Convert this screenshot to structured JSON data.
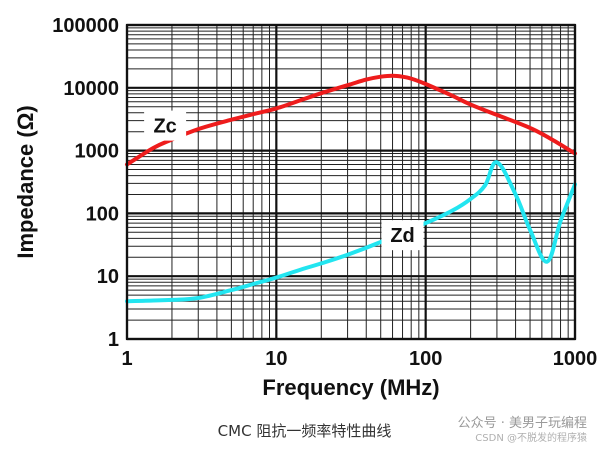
{
  "caption": "CMC 阻抗一频率特性曲线",
  "watermark": {
    "account": "公众号 · 美男子玩编程",
    "csdn": "CSDN @不脱发的程序猿"
  },
  "chart_data": {
    "type": "line",
    "xlabel": "Frequency (MHz)",
    "ylabel": "Impedance (Ω)",
    "x_scale": "log",
    "y_scale": "log",
    "xlim": [
      1,
      1000
    ],
    "ylim": [
      1,
      100000
    ],
    "x_ticks": [
      "1",
      "10",
      "100",
      "1000"
    ],
    "y_ticks": [
      "1",
      "10",
      "100",
      "1000",
      "10000",
      "100000"
    ],
    "grid": true,
    "series": [
      {
        "name": "Zc",
        "color": "#ee1c1c",
        "x": [
          1,
          1.5,
          2,
          3,
          5,
          7,
          10,
          15,
          20,
          30,
          40,
          50,
          60,
          70,
          80,
          100,
          150,
          200,
          300,
          500,
          700,
          1000
        ],
        "y": [
          600,
          1100,
          1500,
          2200,
          3100,
          3800,
          4700,
          6500,
          8200,
          11000,
          13500,
          15000,
          15500,
          15000,
          14000,
          11500,
          7500,
          5400,
          3700,
          2300,
          1500,
          900
        ]
      },
      {
        "name": "Zd",
        "color": "#22e5f0",
        "x": [
          1,
          1.5,
          2,
          3,
          5,
          7,
          10,
          15,
          20,
          30,
          50,
          70,
          100,
          150,
          200,
          250,
          300,
          400,
          500,
          650,
          800,
          1000
        ],
        "y": [
          4,
          4.1,
          4.2,
          4.5,
          6,
          7.5,
          9.5,
          13,
          16,
          22,
          35,
          50,
          70,
          110,
          170,
          280,
          650,
          200,
          55,
          17,
          75,
          290
        ]
      }
    ],
    "annotations": [
      {
        "text": "Zc",
        "x": 1.8,
        "y": 2500
      },
      {
        "text": "Zd",
        "x": 70,
        "y": 45
      }
    ]
  }
}
